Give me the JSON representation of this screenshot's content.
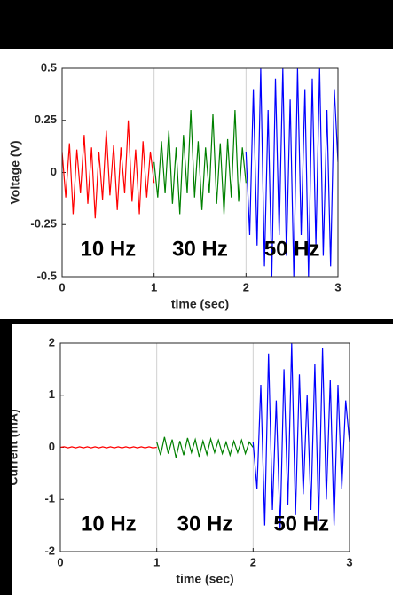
{
  "chart_data": [
    {
      "type": "line",
      "xlabel": "time (sec)",
      "ylabel": "Voltage (V)",
      "xlim": [
        0,
        3
      ],
      "xticks": [
        0,
        1,
        2,
        3
      ],
      "ylim": [
        -0.5,
        0.5
      ],
      "yticks": [
        -0.5,
        -0.25,
        0,
        0.25,
        0.5
      ],
      "xgrid": true,
      "annotations": [
        "10 Hz",
        "30 Hz",
        "50 Hz"
      ],
      "series": [
        {
          "color": "#ff0000",
          "x": [
            0,
            0.04,
            0.08,
            0.12,
            0.16,
            0.2,
            0.24,
            0.28,
            0.32,
            0.36,
            0.4,
            0.44,
            0.48,
            0.52,
            0.56,
            0.6,
            0.64,
            0.68,
            0.72,
            0.76,
            0.8,
            0.84,
            0.88,
            0.92,
            0.96,
            1
          ],
          "values": [
            0.1,
            -0.12,
            0.14,
            -0.2,
            0.11,
            -0.1,
            0.18,
            -0.15,
            0.12,
            -0.22,
            0.1,
            -0.13,
            0.2,
            -0.11,
            0.13,
            -0.18,
            0.12,
            -0.1,
            0.25,
            -0.14,
            0.11,
            -0.2,
            0.15,
            -0.12,
            0.1,
            -0.05
          ]
        },
        {
          "color": "#008000",
          "x": [
            1,
            1.04,
            1.08,
            1.12,
            1.16,
            1.2,
            1.24,
            1.28,
            1.32,
            1.36,
            1.4,
            1.44,
            1.48,
            1.52,
            1.56,
            1.6,
            1.64,
            1.68,
            1.72,
            1.76,
            1.8,
            1.84,
            1.88,
            1.92,
            1.96,
            2
          ],
          "values": [
            0.05,
            -0.12,
            0.15,
            -0.1,
            0.2,
            -0.15,
            0.12,
            -0.2,
            0.18,
            -0.1,
            0.3,
            -0.12,
            0.15,
            -0.18,
            0.12,
            -0.1,
            0.28,
            -0.15,
            0.14,
            -0.2,
            0.16,
            -0.12,
            0.3,
            -0.14,
            0.12,
            -0.05
          ]
        },
        {
          "color": "#0000ff",
          "x": [
            2,
            2.04,
            2.08,
            2.12,
            2.16,
            2.2,
            2.24,
            2.28,
            2.32,
            2.36,
            2.4,
            2.44,
            2.48,
            2.52,
            2.56,
            2.6,
            2.64,
            2.68,
            2.72,
            2.76,
            2.8,
            2.84,
            2.88,
            2.92,
            2.96,
            3
          ],
          "values": [
            0.1,
            -0.3,
            0.4,
            -0.35,
            0.5,
            -0.45,
            0.3,
            -0.5,
            0.45,
            -0.3,
            0.5,
            -0.4,
            0.35,
            -0.5,
            0.5,
            -0.3,
            0.4,
            -0.5,
            0.45,
            -0.35,
            0.5,
            -0.4,
            0.3,
            -0.45,
            0.4,
            0.05
          ]
        }
      ]
    },
    {
      "type": "line",
      "xlabel": "time (sec)",
      "ylabel": "Current (mA)",
      "xlim": [
        0,
        3
      ],
      "xticks": [
        0,
        1,
        2,
        3
      ],
      "ylim": [
        -2,
        2
      ],
      "yticks": [
        -2,
        -1,
        0,
        1,
        2
      ],
      "xgrid": true,
      "annotations": [
        "10 Hz",
        "30 Hz",
        "50 Hz"
      ],
      "series": [
        {
          "color": "#ff0000",
          "x": [
            0,
            0.04,
            0.08,
            0.12,
            0.16,
            0.2,
            0.24,
            0.28,
            0.32,
            0.36,
            0.4,
            0.44,
            0.48,
            0.52,
            0.56,
            0.6,
            0.64,
            0.68,
            0.72,
            0.76,
            0.8,
            0.84,
            0.88,
            0.92,
            0.96,
            1
          ],
          "values": [
            0,
            0.01,
            -0.01,
            0.01,
            -0.01,
            0.01,
            -0.01,
            0.01,
            -0.01,
            0.01,
            -0.01,
            0.01,
            -0.01,
            0.01,
            -0.01,
            0.01,
            -0.01,
            0.01,
            -0.01,
            0.01,
            -0.01,
            0.01,
            -0.01,
            0.01,
            -0.01,
            0
          ]
        },
        {
          "color": "#008000",
          "x": [
            1,
            1.04,
            1.08,
            1.12,
            1.16,
            1.2,
            1.24,
            1.28,
            1.32,
            1.36,
            1.4,
            1.44,
            1.48,
            1.52,
            1.56,
            1.6,
            1.64,
            1.68,
            1.72,
            1.76,
            1.8,
            1.84,
            1.88,
            1.92,
            1.96,
            2
          ],
          "values": [
            0.1,
            -0.15,
            0.2,
            -0.12,
            0.15,
            -0.2,
            0.12,
            -0.15,
            0.18,
            -0.1,
            0.15,
            -0.18,
            0.12,
            -0.14,
            0.16,
            -0.1,
            0.14,
            -0.12,
            0.1,
            -0.15,
            0.12,
            -0.1,
            0.14,
            -0.12,
            0.1,
            0
          ]
        },
        {
          "color": "#0000ff",
          "x": [
            2,
            2.04,
            2.08,
            2.12,
            2.16,
            2.2,
            2.24,
            2.28,
            2.32,
            2.36,
            2.4,
            2.44,
            2.48,
            2.52,
            2.56,
            2.6,
            2.64,
            2.68,
            2.72,
            2.76,
            2.8,
            2.84,
            2.88,
            2.92,
            2.96,
            3
          ],
          "values": [
            0.1,
            -0.8,
            1.2,
            -1.5,
            1.8,
            -1.2,
            0.9,
            -1.6,
            1.5,
            -1.1,
            2.0,
            -1.3,
            1.4,
            -0.9,
            1.0,
            -1.2,
            1.6,
            -1.4,
            1.9,
            -1.0,
            1.3,
            -1.5,
            1.2,
            -0.8,
            0.9,
            0.1
          ]
        }
      ]
    }
  ]
}
